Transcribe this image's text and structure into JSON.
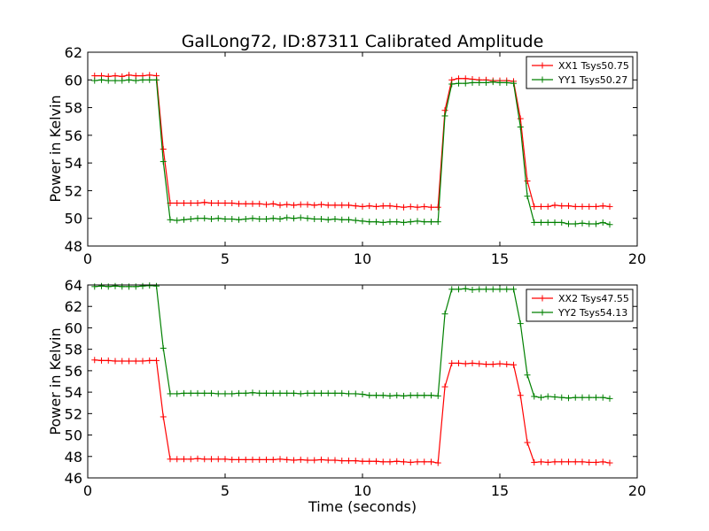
{
  "chart_data": [
    {
      "type": "line",
      "title": "GalLong72, ID:87311 Calibrated Amplitude",
      "xlabel": "",
      "ylabel": "Power in Kelvin",
      "xlim": [
        0,
        20
      ],
      "ylim": [
        48,
        62
      ],
      "xticks": [
        "0",
        "5",
        "10",
        "15",
        "20"
      ],
      "yticks": [
        "48",
        "50",
        "52",
        "54",
        "56",
        "58",
        "60",
        "62"
      ],
      "grid": false,
      "legend_position": "top-right",
      "x": [
        0.25,
        0.5,
        0.75,
        1.0,
        1.25,
        1.5,
        1.75,
        2.0,
        2.25,
        2.5,
        2.75,
        3.0,
        3.25,
        3.5,
        3.75,
        4.0,
        4.25,
        4.5,
        4.75,
        5.0,
        5.25,
        5.5,
        5.75,
        6.0,
        6.25,
        6.5,
        6.75,
        7.0,
        7.25,
        7.5,
        7.75,
        8.0,
        8.25,
        8.5,
        8.75,
        9.0,
        9.25,
        9.5,
        9.75,
        10.0,
        10.25,
        10.5,
        10.75,
        11.0,
        11.25,
        11.5,
        11.75,
        12.0,
        12.25,
        12.5,
        12.75,
        13.0,
        13.25,
        13.5,
        13.75,
        14.0,
        14.25,
        14.5,
        14.75,
        15.0,
        15.25,
        15.5,
        15.75,
        16.0,
        16.25,
        16.5,
        16.75,
        17.0,
        17.25,
        17.5,
        17.75,
        18.0,
        18.25,
        18.5,
        18.75,
        19.0
      ],
      "series": [
        {
          "name": "XX1 Tsys50.75",
          "color": "#ff0000",
          "values": [
            60.3,
            60.3,
            60.25,
            60.3,
            60.25,
            60.35,
            60.3,
            60.3,
            60.35,
            60.3,
            55.0,
            51.1,
            51.1,
            51.1,
            51.1,
            51.1,
            51.15,
            51.1,
            51.1,
            51.1,
            51.1,
            51.05,
            51.05,
            51.05,
            51.05,
            51.0,
            51.05,
            50.95,
            51.0,
            50.95,
            51.0,
            51.0,
            50.95,
            51.0,
            50.95,
            50.95,
            50.95,
            50.95,
            50.9,
            50.85,
            50.9,
            50.85,
            50.9,
            50.9,
            50.85,
            50.8,
            50.85,
            50.8,
            50.85,
            50.8,
            50.8,
            57.8,
            60.0,
            60.1,
            60.1,
            60.05,
            60.0,
            60.0,
            59.95,
            59.95,
            59.95,
            59.9,
            57.2,
            52.7,
            50.85,
            50.85,
            50.85,
            50.95,
            50.9,
            50.9,
            50.85,
            50.85,
            50.85,
            50.85,
            50.9,
            50.85
          ]
        },
        {
          "name": "YY1 Tsys50.27",
          "color": "#008000",
          "values": [
            59.95,
            60.0,
            59.95,
            59.95,
            59.95,
            60.0,
            59.95,
            60.0,
            60.0,
            60.0,
            54.1,
            49.9,
            49.85,
            49.9,
            49.95,
            50.0,
            50.0,
            49.95,
            50.0,
            49.95,
            49.95,
            49.9,
            49.95,
            50.0,
            49.95,
            49.95,
            50.0,
            49.95,
            50.05,
            50.0,
            50.05,
            50.0,
            49.95,
            49.95,
            49.9,
            49.95,
            49.9,
            49.9,
            49.85,
            49.8,
            49.75,
            49.75,
            49.7,
            49.75,
            49.75,
            49.7,
            49.75,
            49.8,
            49.75,
            49.75,
            49.75,
            57.4,
            59.7,
            59.75,
            59.75,
            59.8,
            59.8,
            59.8,
            59.85,
            59.8,
            59.8,
            59.75,
            56.6,
            51.6,
            49.7,
            49.7,
            49.7,
            49.7,
            49.7,
            49.6,
            49.6,
            49.65,
            49.6,
            49.6,
            49.7,
            49.55
          ]
        }
      ]
    },
    {
      "type": "line",
      "title": "",
      "xlabel": "Time (seconds)",
      "ylabel": "Power in Kelvin",
      "xlim": [
        0,
        20
      ],
      "ylim": [
        46,
        64
      ],
      "xticks": [
        "0",
        "5",
        "10",
        "15",
        "20"
      ],
      "yticks": [
        "46",
        "48",
        "50",
        "52",
        "54",
        "56",
        "58",
        "60",
        "62",
        "64"
      ],
      "grid": false,
      "legend_position": "top-right",
      "x": [
        0.25,
        0.5,
        0.75,
        1.0,
        1.25,
        1.5,
        1.75,
        2.0,
        2.25,
        2.5,
        2.75,
        3.0,
        3.25,
        3.5,
        3.75,
        4.0,
        4.25,
        4.5,
        4.75,
        5.0,
        5.25,
        5.5,
        5.75,
        6.0,
        6.25,
        6.5,
        6.75,
        7.0,
        7.25,
        7.5,
        7.75,
        8.0,
        8.25,
        8.5,
        8.75,
        9.0,
        9.25,
        9.5,
        9.75,
        10.0,
        10.25,
        10.5,
        10.75,
        11.0,
        11.25,
        11.5,
        11.75,
        12.0,
        12.25,
        12.5,
        12.75,
        13.0,
        13.25,
        13.5,
        13.75,
        14.0,
        14.25,
        14.5,
        14.75,
        15.0,
        15.25,
        15.5,
        15.75,
        16.0,
        16.25,
        16.5,
        16.75,
        17.0,
        17.25,
        17.5,
        17.75,
        18.0,
        18.25,
        18.5,
        18.75,
        19.0
      ],
      "series": [
        {
          "name": "XX2 Tsys47.55",
          "color": "#ff0000",
          "values": [
            57.0,
            56.95,
            56.95,
            56.9,
            56.9,
            56.9,
            56.9,
            56.9,
            56.95,
            56.95,
            51.7,
            47.75,
            47.75,
            47.75,
            47.75,
            47.8,
            47.75,
            47.75,
            47.75,
            47.75,
            47.7,
            47.7,
            47.7,
            47.7,
            47.7,
            47.7,
            47.7,
            47.75,
            47.7,
            47.65,
            47.7,
            47.65,
            47.65,
            47.7,
            47.65,
            47.65,
            47.6,
            47.6,
            47.6,
            47.55,
            47.55,
            47.55,
            47.5,
            47.5,
            47.55,
            47.5,
            47.45,
            47.5,
            47.5,
            47.5,
            47.4,
            54.5,
            56.7,
            56.7,
            56.65,
            56.7,
            56.65,
            56.6,
            56.6,
            56.65,
            56.6,
            56.55,
            53.7,
            49.3,
            47.45,
            47.5,
            47.45,
            47.5,
            47.5,
            47.5,
            47.5,
            47.5,
            47.45,
            47.45,
            47.5,
            47.4
          ]
        },
        {
          "name": "YY2 Tsys54.13",
          "color": "#008000",
          "values": [
            63.85,
            63.9,
            63.85,
            63.9,
            63.85,
            63.85,
            63.85,
            63.9,
            63.95,
            63.9,
            58.1,
            53.85,
            53.85,
            53.9,
            53.9,
            53.9,
            53.9,
            53.9,
            53.85,
            53.85,
            53.85,
            53.9,
            53.9,
            53.95,
            53.9,
            53.9,
            53.9,
            53.9,
            53.9,
            53.9,
            53.85,
            53.9,
            53.9,
            53.9,
            53.9,
            53.9,
            53.9,
            53.85,
            53.85,
            53.8,
            53.7,
            53.7,
            53.7,
            53.65,
            53.7,
            53.65,
            53.7,
            53.7,
            53.7,
            53.7,
            53.65,
            61.3,
            63.6,
            63.6,
            63.65,
            63.55,
            63.6,
            63.6,
            63.6,
            63.6,
            63.6,
            63.6,
            60.4,
            55.6,
            53.6,
            53.5,
            53.6,
            53.55,
            53.5,
            53.45,
            53.5,
            53.5,
            53.5,
            53.5,
            53.5,
            53.4
          ]
        }
      ]
    }
  ]
}
